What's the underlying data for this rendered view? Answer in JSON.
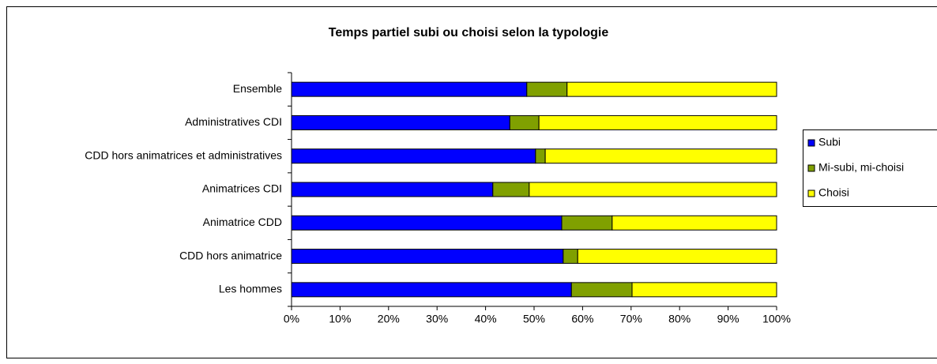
{
  "chart_data": {
    "type": "stacked_bar_horizontal",
    "title": "Temps partiel subi ou choisi selon la typologie",
    "categories": [
      "Ensemble",
      "Administratives CDI",
      "CDD hors animatrices  et administratives",
      "Animatrices CDI",
      "Animatrice CDD",
      "CDD hors animatrice",
      "Les hommes"
    ],
    "series": [
      {
        "name": "Subi",
        "color": "#0000ff",
        "values": [
          48.5,
          45.0,
          50.3,
          41.5,
          55.7,
          56.0,
          57.7
        ]
      },
      {
        "name": "Mi-subi, mi-choisi",
        "color": "#80a000",
        "values": [
          8.3,
          6.0,
          2.0,
          7.5,
          10.4,
          3.0,
          12.5
        ]
      },
      {
        "name": "Choisi",
        "color": "#ffff00",
        "values": [
          43.2,
          49.0,
          47.7,
          51.0,
          33.9,
          41.0,
          29.8
        ]
      }
    ],
    "xlim": [
      0,
      100
    ],
    "xticks": [
      {
        "value": 0,
        "label": "0%"
      },
      {
        "value": 10,
        "label": "10%"
      },
      {
        "value": 20,
        "label": "20%"
      },
      {
        "value": 30,
        "label": "30%"
      },
      {
        "value": 40,
        "label": "40%"
      },
      {
        "value": 50,
        "label": "50%"
      },
      {
        "value": 60,
        "label": "60%"
      },
      {
        "value": 70,
        "label": "70%"
      },
      {
        "value": 80,
        "label": "80%"
      },
      {
        "value": 90,
        "label": "90%"
      },
      {
        "value": 100,
        "label": "100%"
      }
    ],
    "legend": "right"
  }
}
